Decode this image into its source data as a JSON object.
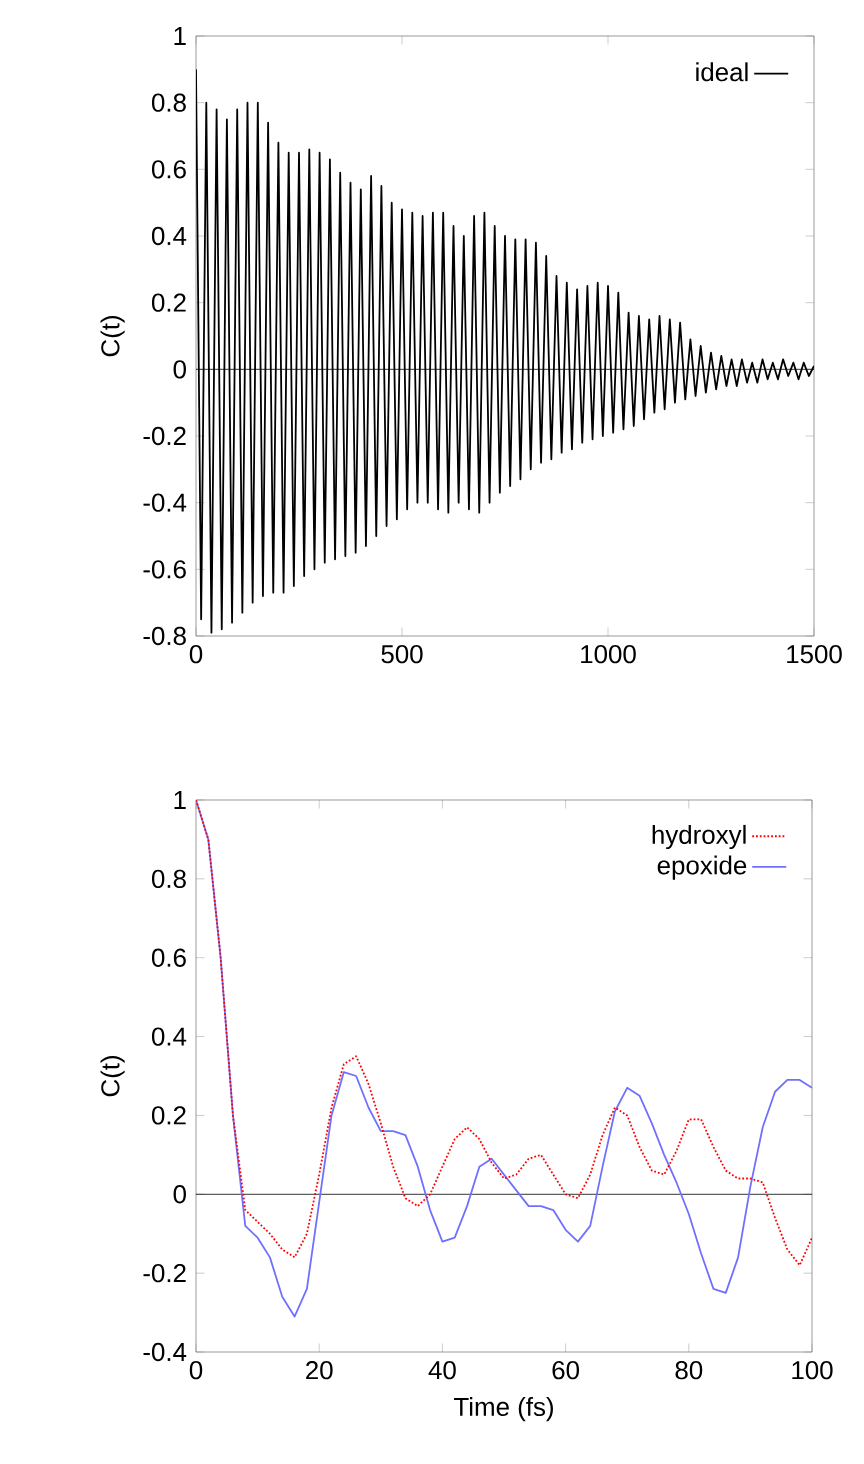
{
  "chart_data": [
    {
      "type": "line",
      "ylabel": "C(t)",
      "xlim": [
        0,
        1500
      ],
      "ylim": [
        -0.8,
        1
      ],
      "xticks": [
        0,
        500,
        1000,
        1500
      ],
      "yticks": [
        -0.8,
        -0.6,
        -0.4,
        -0.2,
        0,
        0.2,
        0.4,
        0.6,
        0.8,
        1
      ],
      "legend": "top right",
      "ref_lines": [
        {
          "axis": "y",
          "value": 0,
          "color": "#000000"
        }
      ],
      "x": [
        0,
        12.5,
        25,
        37.5,
        50,
        62.5,
        75,
        87.5,
        100,
        112.5,
        125,
        137.5,
        150,
        162.5,
        175,
        187.5,
        200,
        212.5,
        225,
        237.5,
        250,
        262.5,
        275,
        287.5,
        300,
        312.5,
        325,
        337.5,
        350,
        362.5,
        375,
        387.5,
        400,
        412.5,
        425,
        437.5,
        450,
        462.5,
        475,
        487.5,
        500,
        512.5,
        525,
        537.5,
        550,
        562.5,
        575,
        587.5,
        600,
        612.5,
        625,
        637.5,
        650,
        662.5,
        675,
        687.5,
        700,
        712.5,
        725,
        737.5,
        750,
        762.5,
        775,
        787.5,
        800,
        812.5,
        825,
        837.5,
        850,
        862.5,
        875,
        887.5,
        900,
        912.5,
        925,
        937.5,
        950,
        962.5,
        975,
        987.5,
        1000,
        1012.5,
        1025,
        1037.5,
        1050,
        1062.5,
        1075,
        1087.5,
        1100,
        1112.5,
        1125,
        1137.5,
        1150,
        1162.5,
        1175,
        1187.5,
        1200,
        1212.5,
        1225,
        1237.5,
        1250,
        1262.5,
        1275,
        1287.5,
        1300,
        1312.5,
        1325,
        1337.5,
        1350,
        1362.5,
        1375,
        1387.5,
        1400,
        1412.5,
        1425,
        1437.5,
        1450,
        1462.5,
        1475,
        1487.5,
        1500
      ],
      "series": [
        {
          "name": "ideal",
          "color": "#000000",
          "line_style": "solid",
          "values": [
            0.9,
            -0.75,
            0.8,
            -0.79,
            0.78,
            -0.78,
            0.75,
            -0.76,
            0.78,
            -0.73,
            0.8,
            -0.7,
            0.8,
            -0.68,
            0.74,
            -0.67,
            0.68,
            -0.67,
            0.65,
            -0.65,
            0.65,
            -0.62,
            0.66,
            -0.6,
            0.65,
            -0.58,
            0.63,
            -0.57,
            0.59,
            -0.56,
            0.56,
            -0.55,
            0.54,
            -0.53,
            0.58,
            -0.5,
            0.55,
            -0.47,
            0.5,
            -0.45,
            0.48,
            -0.42,
            0.47,
            -0.4,
            0.46,
            -0.4,
            0.47,
            -0.42,
            0.47,
            -0.43,
            0.43,
            -0.4,
            0.4,
            -0.42,
            0.46,
            -0.43,
            0.47,
            -0.4,
            0.43,
            -0.37,
            0.4,
            -0.35,
            0.39,
            -0.33,
            0.39,
            -0.3,
            0.38,
            -0.28,
            0.34,
            -0.27,
            0.28,
            -0.25,
            0.26,
            -0.24,
            0.24,
            -0.22,
            0.25,
            -0.21,
            0.26,
            -0.2,
            0.25,
            -0.19,
            0.23,
            -0.18,
            0.17,
            -0.17,
            0.16,
            -0.15,
            0.15,
            -0.13,
            0.16,
            -0.12,
            0.15,
            -0.1,
            0.14,
            -0.09,
            0.09,
            -0.08,
            0.07,
            -0.07,
            0.05,
            -0.06,
            0.04,
            -0.05,
            0.03,
            -0.05,
            0.03,
            -0.04,
            0.02,
            -0.04,
            0.03,
            -0.03,
            0.02,
            -0.03,
            0.03,
            -0.02,
            0.02,
            -0.03,
            0.02,
            -0.02,
            0.01
          ]
        }
      ]
    },
    {
      "type": "line",
      "xlabel": "Time (fs)",
      "ylabel": "C(t)",
      "xlim": [
        0,
        100
      ],
      "ylim": [
        -0.4,
        1
      ],
      "xticks": [
        0,
        20,
        40,
        60,
        80,
        100
      ],
      "yticks": [
        -0.4,
        -0.2,
        0,
        0.2,
        0.4,
        0.6,
        0.8,
        1
      ],
      "legend": "top right",
      "ref_lines": [
        {
          "axis": "y",
          "value": 0,
          "color": "#000000"
        }
      ],
      "x": [
        0,
        2,
        4,
        6,
        8,
        10,
        12,
        14,
        16,
        18,
        20,
        22,
        24,
        26,
        28,
        30,
        32,
        34,
        36,
        38,
        40,
        42,
        44,
        46,
        48,
        50,
        52,
        54,
        56,
        58,
        60,
        62,
        64,
        66,
        68,
        70,
        72,
        74,
        76,
        78,
        80,
        82,
        84,
        86,
        88,
        90,
        92,
        94,
        96,
        98,
        100
      ],
      "series": [
        {
          "name": "hydroxyl",
          "color": "#ff0000",
          "line_style": "dotted",
          "values": [
            1,
            0.9,
            0.6,
            0.2,
            -0.04,
            -0.07,
            -0.1,
            -0.14,
            -0.16,
            -0.1,
            0.05,
            0.22,
            0.33,
            0.35,
            0.28,
            0.18,
            0.07,
            -0.01,
            -0.03,
            0.0,
            0.07,
            0.14,
            0.17,
            0.14,
            0.08,
            0.04,
            0.05,
            0.09,
            0.1,
            0.05,
            0.0,
            -0.01,
            0.05,
            0.15,
            0.22,
            0.2,
            0.12,
            0.06,
            0.05,
            0.11,
            0.19,
            0.19,
            0.12,
            0.06,
            0.04,
            0.04,
            0.03,
            -0.06,
            -0.14,
            -0.18,
            -0.11
          ]
        },
        {
          "name": "epoxide",
          "color": "#7070ff",
          "line_style": "solid",
          "values": [
            1,
            0.9,
            0.6,
            0.2,
            -0.08,
            -0.11,
            -0.16,
            -0.26,
            -0.31,
            -0.24,
            -0.02,
            0.2,
            0.31,
            0.3,
            0.22,
            0.16,
            0.16,
            0.15,
            0.07,
            -0.04,
            -0.12,
            -0.11,
            -0.03,
            0.07,
            0.09,
            0.05,
            0.01,
            -0.03,
            -0.03,
            -0.04,
            -0.09,
            -0.12,
            -0.08,
            0.07,
            0.21,
            0.27,
            0.25,
            0.18,
            0.1,
            0.03,
            -0.05,
            -0.15,
            -0.24,
            -0.25,
            -0.16,
            0.02,
            0.17,
            0.26,
            0.29,
            0.29,
            0.27
          ]
        }
      ]
    }
  ]
}
